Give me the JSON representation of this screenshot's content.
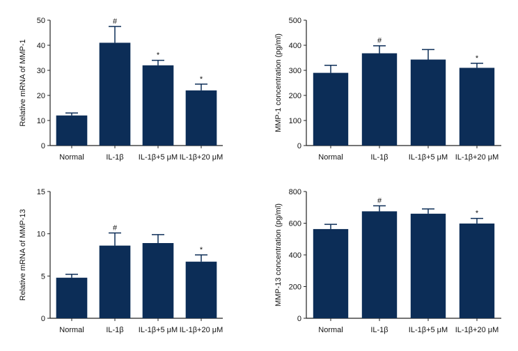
{
  "style": {
    "bar_color": "#0c2d57",
    "axis_color": "#222222"
  },
  "chart_data": [
    {
      "id": "mmp1-mrna",
      "type": "bar",
      "ylabel": "Relative mRNA of MMP-1",
      "ylim": [
        0,
        50
      ],
      "yticks": [
        0,
        10,
        20,
        30,
        40,
        50
      ],
      "categories": [
        "Normal",
        "IL-1β",
        "IL-1β+5 μM",
        "IL-1β+20 μM"
      ],
      "values": [
        12,
        41,
        32,
        22
      ],
      "errors": [
        1,
        6.5,
        2,
        2.5
      ],
      "annotations": [
        "",
        "#",
        "*",
        "*"
      ]
    },
    {
      "id": "mmp1-concentration",
      "type": "bar",
      "ylabel": "MMP-1 concentration (pg/ml)",
      "ylim": [
        0,
        500
      ],
      "yticks": [
        0,
        100,
        200,
        300,
        400,
        500
      ],
      "categories": [
        "Normal",
        "IL-1β",
        "IL-1β+5 μM",
        "IL-1β+20 μM"
      ],
      "values": [
        290,
        368,
        343,
        310
      ],
      "errors": [
        30,
        30,
        40,
        18
      ],
      "annotations": [
        "",
        "#",
        "",
        "*"
      ]
    },
    {
      "id": "mmp13-mrna",
      "type": "bar",
      "ylabel": "Relative mRNA of MMP-13",
      "ylim": [
        0,
        15
      ],
      "yticks": [
        0,
        5,
        10,
        15
      ],
      "categories": [
        "Normal",
        "IL-1β",
        "IL-1β+5 μM",
        "IL-1β+20 μM"
      ],
      "values": [
        4.8,
        8.6,
        8.9,
        6.7
      ],
      "errors": [
        0.4,
        1.5,
        1.0,
        0.8
      ],
      "annotations": [
        "",
        "#",
        "",
        "*"
      ]
    },
    {
      "id": "mmp13-concentration",
      "type": "bar",
      "ylabel": "MMP-13 concentration (pg/ml)",
      "ylim": [
        0,
        800
      ],
      "yticks": [
        0,
        200,
        400,
        600,
        800
      ],
      "categories": [
        "Normal",
        "IL-1β",
        "IL-1β+5 μM",
        "IL-1β+20 μM"
      ],
      "values": [
        563,
        675,
        660,
        598
      ],
      "errors": [
        30,
        35,
        30,
        32
      ],
      "annotations": [
        "",
        "#",
        "",
        "*"
      ]
    }
  ]
}
